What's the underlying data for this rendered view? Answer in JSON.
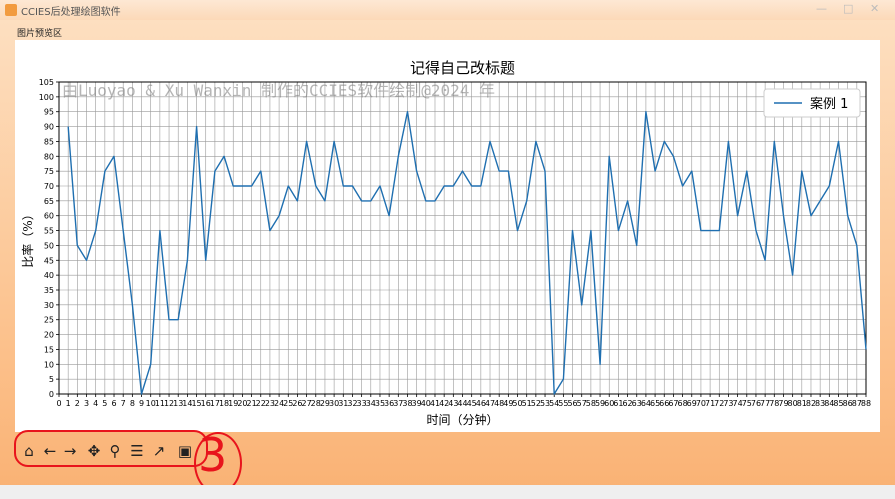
{
  "window": {
    "title": "CCIES后处理绘图软件",
    "tab_label": "图片预览区"
  },
  "toolbar": {
    "icons": [
      "home-icon",
      "back-arrow-icon",
      "forward-arrow-icon",
      "pan-move-icon",
      "zoom-magnifier-icon",
      "configure-subplots-icon",
      "edit-axis-icon",
      "save-floppy-icon"
    ]
  },
  "annotation": {
    "text": "3",
    "color": "#e8141c"
  },
  "watermark": "由Luoyao & Xu Wanxin 制作的CCIES软件绘制@2024 年",
  "chart_data": {
    "type": "line",
    "title": "记得自己改标题",
    "xlabel": "时间（分钟）",
    "ylabel": "比率（%）",
    "xlim": [
      0,
      88
    ],
    "ylim": [
      0,
      105
    ],
    "grid": true,
    "legend_position": "top-right",
    "x_ticks": [
      0,
      1,
      2,
      3,
      4,
      5,
      6,
      7,
      8,
      9,
      10,
      11,
      12,
      13,
      14,
      15,
      16,
      17,
      18,
      19,
      20,
      21,
      22,
      23,
      24,
      25,
      26,
      27,
      28,
      29,
      30,
      31,
      32,
      33,
      34,
      35,
      36,
      37,
      38,
      39,
      40,
      41,
      42,
      43,
      44,
      45,
      46,
      47,
      48,
      49,
      50,
      51,
      52,
      53,
      54,
      55,
      56,
      57,
      58,
      59,
      60,
      61,
      62,
      63,
      64,
      65,
      66,
      67,
      68,
      69,
      70,
      71,
      72,
      73,
      74,
      75,
      76,
      77,
      78,
      79,
      80,
      81,
      82,
      83,
      84,
      85,
      86,
      87,
      88
    ],
    "y_ticks": [
      0,
      5,
      10,
      15,
      20,
      25,
      30,
      35,
      40,
      45,
      50,
      55,
      60,
      65,
      70,
      75,
      80,
      85,
      90,
      95,
      100,
      105
    ],
    "series": [
      {
        "name": "案例 1",
        "color": "#1f6fb0",
        "x": [
          1,
          2,
          3,
          4,
          5,
          6,
          7,
          8,
          9,
          10,
          11,
          12,
          13,
          14,
          15,
          16,
          17,
          18,
          19,
          20,
          21,
          22,
          23,
          24,
          25,
          26,
          27,
          28,
          29,
          30,
          31,
          32,
          33,
          34,
          35,
          36,
          37,
          38,
          39,
          40,
          41,
          42,
          43,
          44,
          45,
          46,
          47,
          48,
          49,
          50,
          51,
          52,
          53,
          54,
          55,
          56,
          57,
          58,
          59,
          60,
          61,
          62,
          63,
          64,
          65,
          66,
          67,
          68,
          69,
          70,
          71,
          72,
          73,
          74,
          75,
          76,
          77,
          78,
          79,
          80,
          81,
          82,
          83,
          84,
          85,
          86,
          87,
          88
        ],
        "y": [
          90,
          50,
          45,
          55,
          75,
          80,
          55,
          30,
          0,
          10,
          55,
          25,
          25,
          45,
          90,
          45,
          75,
          80,
          70,
          70,
          70,
          75,
          55,
          60,
          70,
          65,
          85,
          70,
          65,
          85,
          70,
          70,
          65,
          65,
          70,
          60,
          80,
          95,
          75,
          65,
          65,
          70,
          70,
          75,
          70,
          70,
          85,
          75,
          75,
          55,
          65,
          85,
          75,
          0,
          5,
          55,
          30,
          55,
          10,
          80,
          55,
          65,
          50,
          95,
          75,
          85,
          80,
          70,
          75,
          55,
          55,
          55,
          85,
          60,
          75,
          55,
          45,
          85,
          60,
          40,
          75,
          60,
          65,
          70,
          85,
          60,
          50,
          15
        ]
      }
    ]
  }
}
